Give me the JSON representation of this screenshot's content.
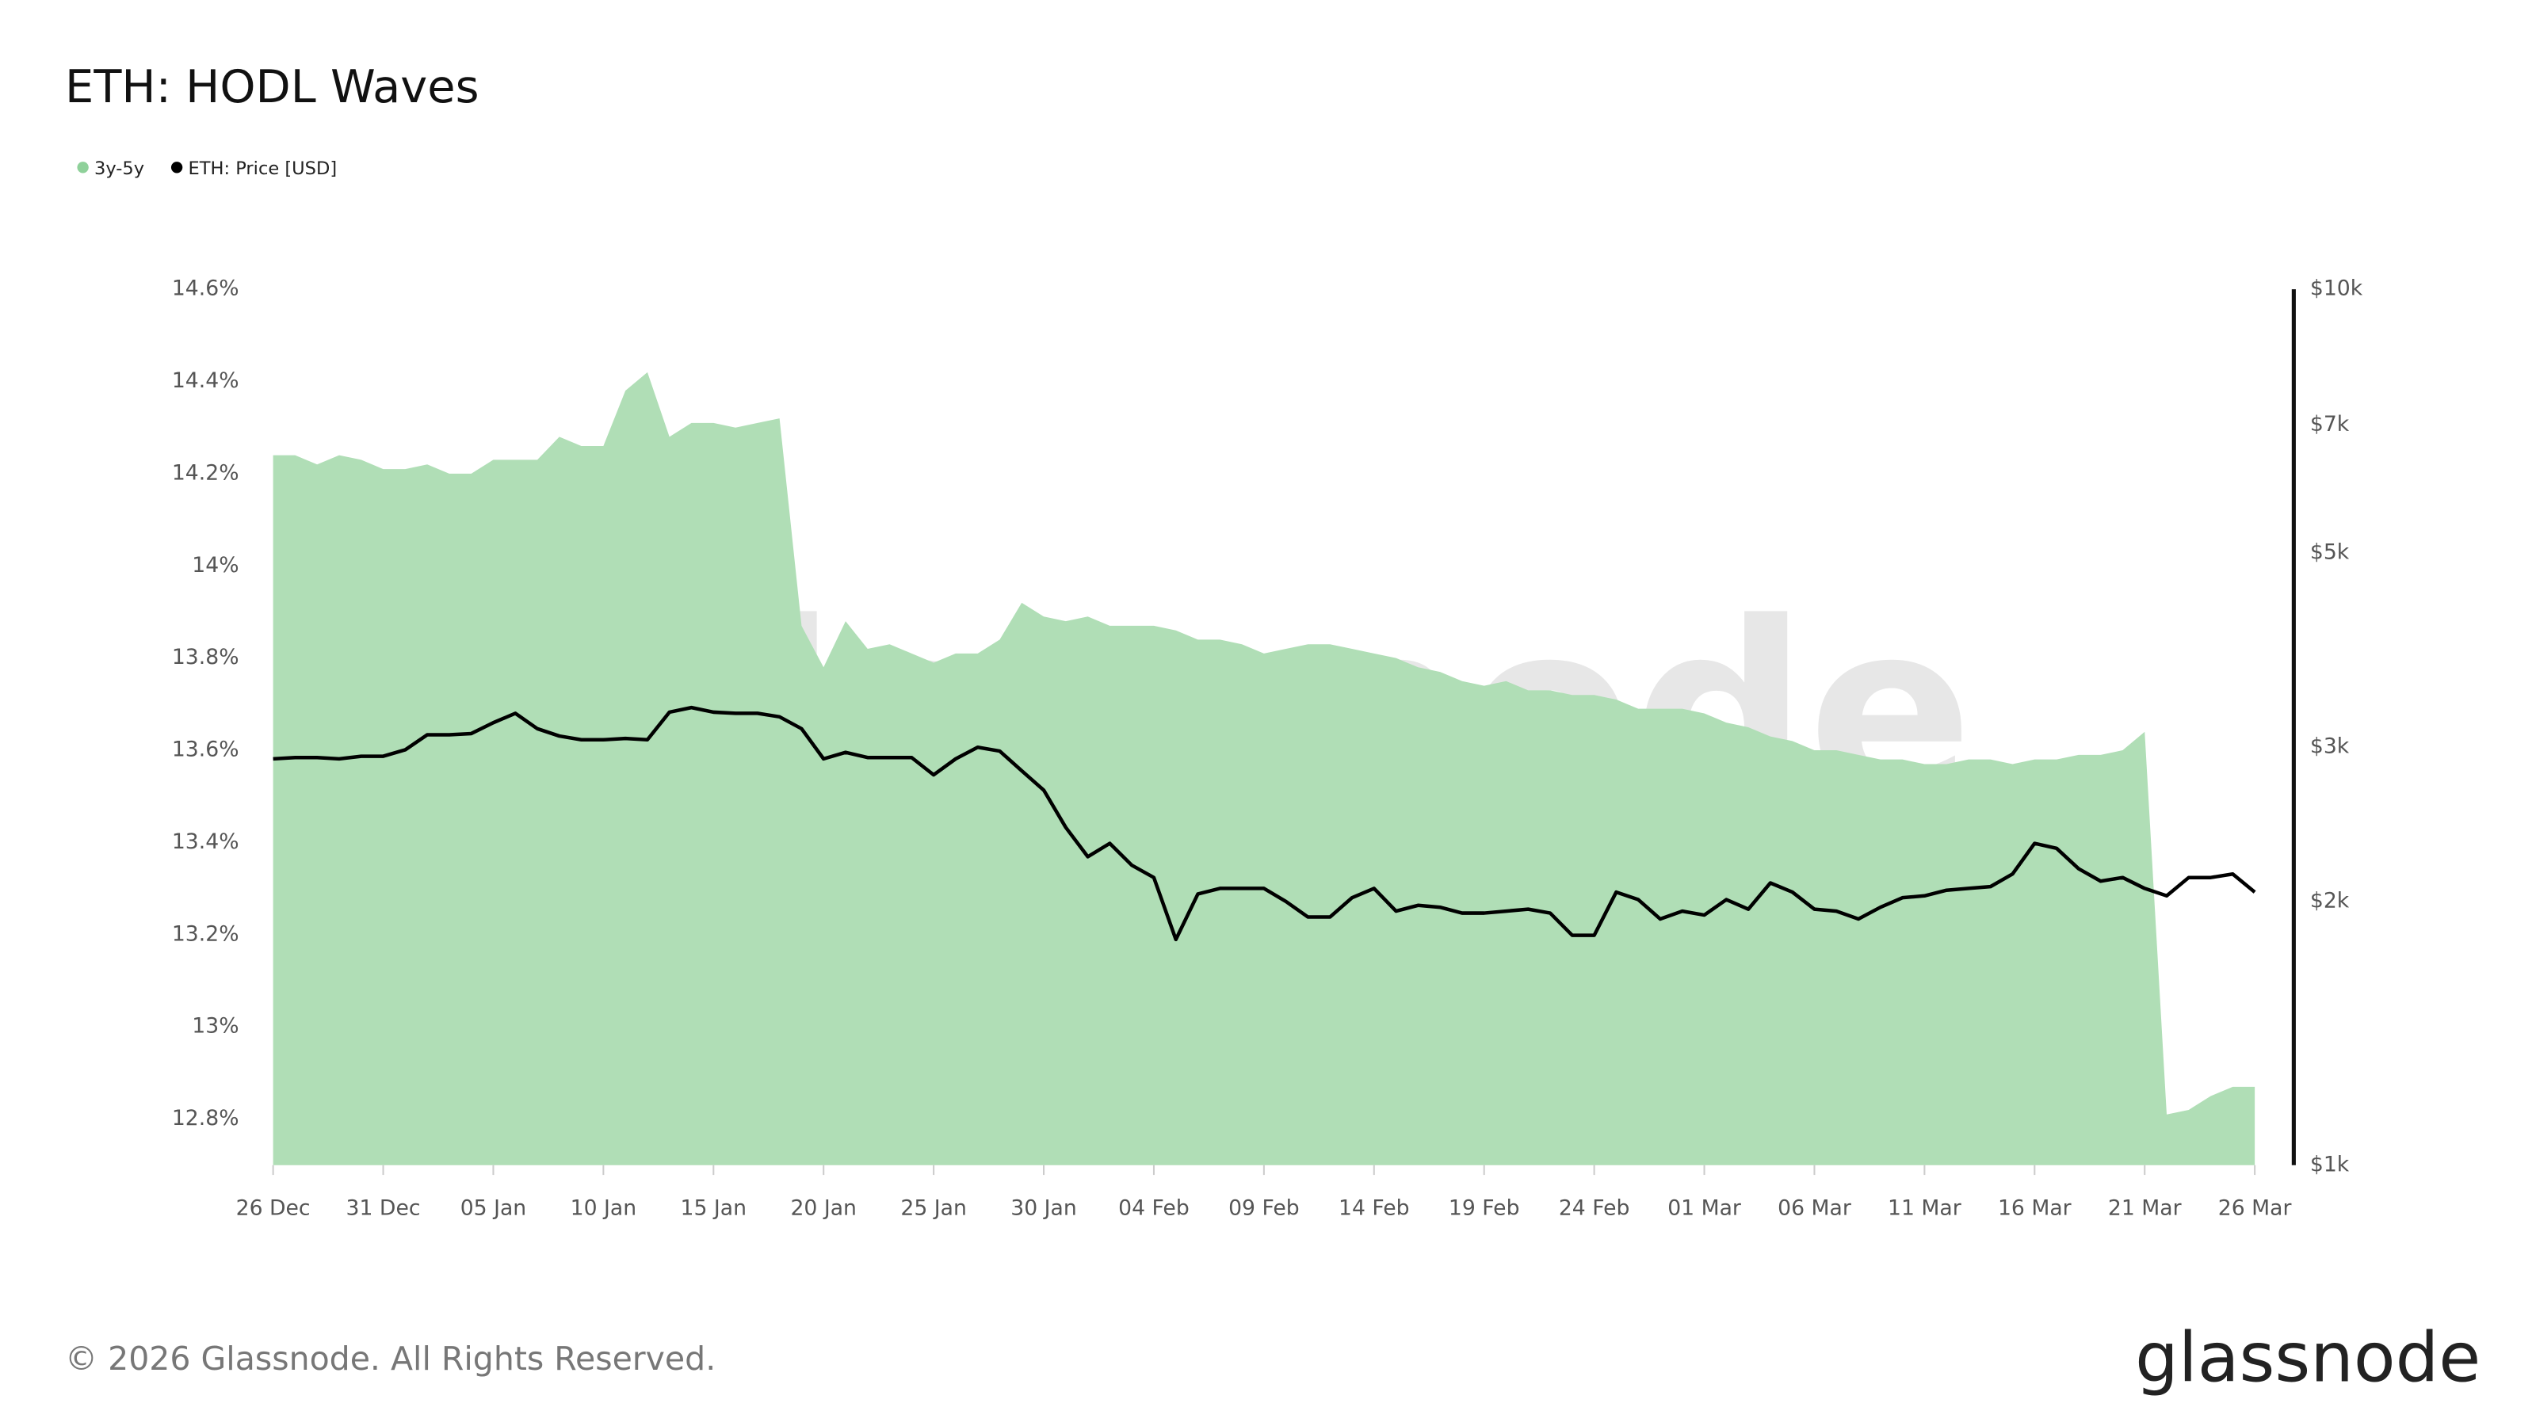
{
  "chart_data": {
    "type": "area-line",
    "title": "ETH: HODL Waves",
    "watermark": "glassnode",
    "footer": "© 2026 Glassnode. All Rights Reserved.",
    "logo": "glassnode",
    "categories": [
      "26 Dec",
      null,
      null,
      null,
      null,
      "31 Dec",
      null,
      null,
      null,
      null,
      "05 Jan",
      null,
      null,
      null,
      null,
      "10 Jan",
      null,
      null,
      null,
      null,
      "15 Jan",
      null,
      null,
      null,
      null,
      "20 Jan",
      null,
      null,
      null,
      null,
      "25 Jan",
      null,
      null,
      null,
      null,
      "30 Jan",
      null,
      null,
      null,
      null,
      "04 Feb",
      null,
      null,
      null,
      null,
      "09 Feb",
      null,
      null,
      null,
      null,
      "14 Feb",
      null,
      null,
      null,
      null,
      "19 Feb",
      null,
      null,
      null,
      null,
      "24 Feb",
      null,
      null,
      null,
      null,
      "01 Mar",
      null,
      null,
      null,
      null,
      "06 Mar",
      null,
      null,
      null,
      null,
      "11 Mar",
      null,
      null,
      null,
      null,
      "16 Mar",
      null,
      null,
      null,
      null,
      "21 Mar",
      null,
      null,
      null,
      null,
      "26 Mar"
    ],
    "series": [
      {
        "name": "3y-5y",
        "color": "#b0deb6",
        "axis": "y",
        "values": [
          14.24,
          14.24,
          14.22,
          14.24,
          14.23,
          14.21,
          14.21,
          14.22,
          14.2,
          14.2,
          14.23,
          14.23,
          14.23,
          14.28,
          14.26,
          14.26,
          14.38,
          14.42,
          14.28,
          14.31,
          14.31,
          14.3,
          14.31,
          14.32,
          13.87,
          13.78,
          13.88,
          13.82,
          13.83,
          13.81,
          13.79,
          13.81,
          13.81,
          13.84,
          13.92,
          13.89,
          13.88,
          13.89,
          13.87,
          13.87,
          13.87,
          13.86,
          13.84,
          13.84,
          13.83,
          13.81,
          13.82,
          13.83,
          13.83,
          13.82,
          13.81,
          13.8,
          13.78,
          13.77,
          13.75,
          13.74,
          13.75,
          13.73,
          13.73,
          13.72,
          13.72,
          13.71,
          13.69,
          13.69,
          13.69,
          13.68,
          13.66,
          13.65,
          13.63,
          13.62,
          13.6,
          13.6,
          13.59,
          13.58,
          13.58,
          13.57,
          13.57,
          13.58,
          13.58,
          13.57,
          13.58,
          13.58,
          13.59,
          13.59,
          13.6,
          13.64,
          12.81,
          12.82,
          12.85,
          12.87,
          12.87
        ]
      },
      {
        "name": "ETH: Price [USD]",
        "color": "#000000",
        "axis": "y2",
        "values": [
          2910,
          2920,
          2920,
          2910,
          2930,
          2930,
          2980,
          3100,
          3100,
          3110,
          3200,
          3280,
          3150,
          3090,
          3060,
          3060,
          3070,
          3060,
          3290,
          3330,
          3290,
          3280,
          3280,
          3250,
          3150,
          2910,
          2960,
          2920,
          2920,
          2920,
          2790,
          2910,
          3000,
          2970,
          2820,
          2680,
          2430,
          2250,
          2330,
          2200,
          2130,
          1810,
          2040,
          2070,
          2070,
          2070,
          2000,
          1920,
          1920,
          2020,
          2070,
          1950,
          1980,
          1970,
          1940,
          1940,
          1950,
          1960,
          1940,
          1830,
          1830,
          2050,
          2010,
          1910,
          1950,
          1930,
          2010,
          1960,
          2100,
          2050,
          1960,
          1950,
          1910,
          1970,
          2020,
          2030,
          2060,
          2070,
          2080,
          2150,
          2330,
          2300,
          2180,
          2110,
          2130,
          2070,
          2030,
          2130,
          2130,
          2150,
          2050
        ]
      }
    ],
    "ylim": [
      12.7,
      14.6
    ],
    "yticks": [
      {
        "value": 12.8,
        "label": "12.8%"
      },
      {
        "value": 13,
        "label": "13%"
      },
      {
        "value": 13.2,
        "label": "13.2%"
      },
      {
        "value": 13.4,
        "label": "13.4%"
      },
      {
        "value": 13.6,
        "label": "13.6%"
      },
      {
        "value": 13.8,
        "label": "13.8%"
      },
      {
        "value": 14,
        "label": "14%"
      },
      {
        "value": 14.2,
        "label": "14.2%"
      },
      {
        "value": 14.4,
        "label": "14.4%"
      },
      {
        "value": 14.6,
        "label": "14.6%"
      }
    ],
    "y2lim": [
      1000,
      10000
    ],
    "y2_log": true,
    "y2ticks": [
      {
        "value": 1000,
        "label": "$1k"
      },
      {
        "value": 2000,
        "label": "$2k"
      },
      {
        "value": 3000,
        "label": "$3k"
      },
      {
        "value": 5000,
        "label": "$5k"
      },
      {
        "value": 7000,
        "label": "$7k"
      },
      {
        "value": 10000,
        "label": "$10k"
      }
    ],
    "legend": "top-left"
  }
}
